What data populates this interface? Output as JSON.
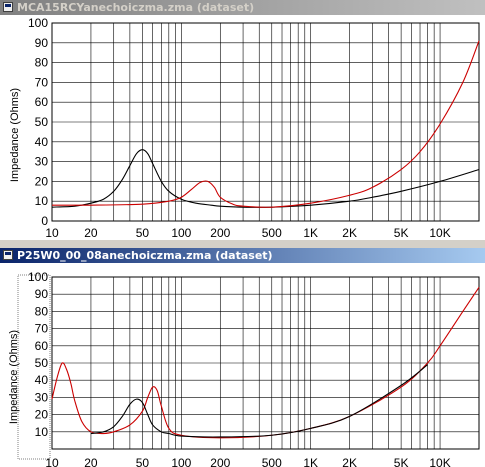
{
  "colors": {
    "series_black": "#000000",
    "series_red": "#cc0000",
    "grid": "#000000"
  },
  "windows": [
    {
      "title": "MCA15RCYanechoiczma.zma (dataset)",
      "active": false,
      "icon": "document-icon"
    },
    {
      "title": "P25W0_00_08anechoiczma.zma (dataset)",
      "active": true,
      "icon": "document-icon"
    }
  ],
  "chart_data": [
    {
      "type": "line",
      "title": "MCA15RCYanechoiczma.zma (dataset)",
      "xlabel": "",
      "ylabel": "Impedance (Ohms)",
      "xscale": "log",
      "xlim": [
        10,
        20000
      ],
      "ylim": [
        0,
        100
      ],
      "yticks": [
        0,
        10,
        20,
        30,
        40,
        50,
        60,
        70,
        80,
        90,
        100
      ],
      "ytick_labels": [
        "0",
        "10",
        "20",
        "30",
        "40",
        "50",
        "60",
        "70",
        "80",
        "90",
        "100"
      ],
      "xticks": [
        10,
        20,
        50,
        100,
        200,
        500,
        1000,
        2000,
        5000,
        10000
      ],
      "xtick_labels": [
        "10",
        "20",
        "50",
        "100",
        "200",
        "500",
        "1K",
        "2K",
        "5K",
        "10K"
      ],
      "grid": true,
      "series": [
        {
          "color": "#000000",
          "x": [
            10,
            15,
            20,
            25,
            30,
            35,
            40,
            45,
            50,
            55,
            60,
            70,
            80,
            100,
            130,
            170,
            200,
            300,
            500,
            1000,
            2000,
            3000,
            5000,
            10000,
            20000
          ],
          "y": [
            7,
            7.5,
            9,
            11,
            15,
            21,
            28,
            34,
            36,
            34,
            29,
            20,
            15,
            11,
            9,
            8,
            7.5,
            7,
            7,
            8,
            10,
            12,
            15,
            20,
            26
          ]
        },
        {
          "color": "#cc0000",
          "x": [
            10,
            20,
            50,
            80,
            100,
            120,
            140,
            160,
            180,
            200,
            250,
            300,
            500,
            1000,
            2000,
            3000,
            5000,
            7000,
            10000,
            15000,
            20000
          ],
          "y": [
            8,
            8,
            8.5,
            10,
            12,
            16,
            19.5,
            20,
            17,
            12,
            8.5,
            7.5,
            7,
            9,
            13,
            17,
            26,
            35,
            49,
            70,
            91
          ]
        }
      ]
    },
    {
      "type": "line",
      "title": "P25W0_00_08anechoiczma.zma (dataset)",
      "xlabel": "",
      "ylabel": "Impedance (Ohms)",
      "xscale": "log",
      "xlim": [
        10,
        20000
      ],
      "ylim": [
        0,
        100
      ],
      "yticks": [
        10,
        20,
        30,
        40,
        50,
        60,
        70,
        80,
        90,
        100
      ],
      "ytick_labels": [
        "10",
        "20",
        "30",
        "40",
        "50",
        "60",
        "70",
        "80",
        "90",
        "100"
      ],
      "xticks": [
        10,
        20,
        50,
        100,
        200,
        500,
        1000,
        2000,
        5000,
        10000
      ],
      "xtick_labels": [
        "10",
        "20",
        "50",
        "100",
        "200",
        "500",
        "1K",
        "2K",
        "5K",
        "10K"
      ],
      "grid": true,
      "series": [
        {
          "color": "#cc0000",
          "x": [
            10,
            11,
            12,
            13,
            14,
            15,
            17,
            20,
            25,
            30,
            40,
            50,
            55,
            60,
            65,
            70,
            80,
            100,
            200,
            500,
            1000,
            2000,
            5000,
            8000,
            10000,
            15000,
            20000
          ],
          "y": [
            29,
            42,
            50,
            46,
            38,
            28,
            16,
            10,
            9,
            10,
            14,
            22,
            30,
            36,
            34,
            25,
            12,
            8,
            6.5,
            8,
            12,
            19,
            36,
            50,
            60,
            80,
            94
          ]
        },
        {
          "color": "#000000",
          "x": [
            20,
            25,
            30,
            35,
            40,
            45,
            50,
            55,
            60,
            70,
            80,
            100,
            200,
            500,
            1000,
            2000,
            5000,
            8000
          ],
          "y": [
            9,
            10,
            13,
            19,
            26,
            29,
            27,
            20,
            14,
            10,
            9,
            7.5,
            7,
            8,
            12,
            19,
            37,
            49
          ]
        }
      ]
    }
  ]
}
